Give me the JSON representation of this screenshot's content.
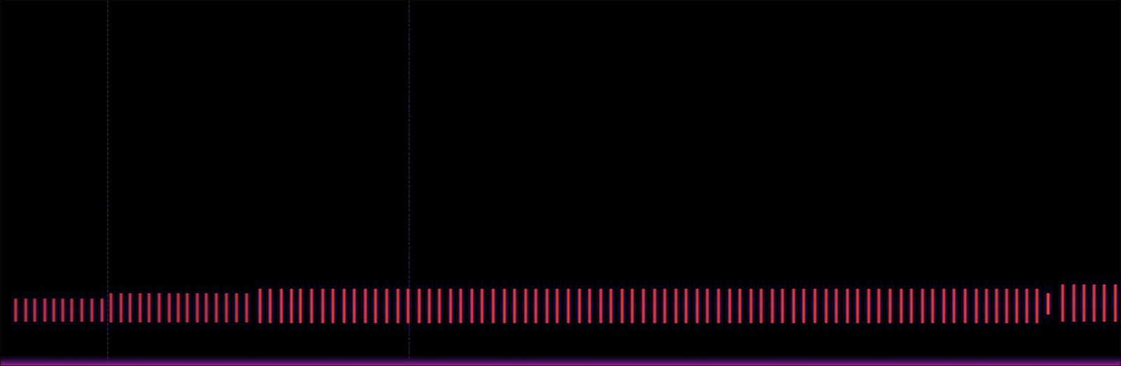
{
  "chart_data": {
    "type": "spectrogram",
    "tick_labels": false,
    "color": "#e0234e",
    "xlim": [
      0,
      100
    ],
    "ylim": [
      0,
      100
    ],
    "noise_floor": 3,
    "clicks": [
      9.6,
      36.5
    ],
    "pulses": {
      "x": [
        1.4,
        2.3,
        3.1,
        4.0,
        4.8,
        5.6,
        6.4,
        7.3,
        8.2,
        9.1,
        9.9,
        10.8,
        11.6,
        12.5,
        13.3,
        14.2,
        15.1,
        15.9,
        16.7,
        17.6,
        18.4,
        19.3,
        20.2,
        21.1,
        22.0,
        23.2,
        24.1,
        25.1,
        26.0,
        26.8,
        27.8,
        28.8,
        29.7,
        30.7,
        31.6,
        32.6,
        33.5,
        34.5,
        35.5,
        36.4,
        37.4,
        38.3,
        39.2,
        40.2,
        41.1,
        42.1,
        43.0,
        44.0,
        45.0,
        45.9,
        46.9,
        47.8,
        48.8,
        49.7,
        50.7,
        51.7,
        52.6,
        53.6,
        54.5,
        55.5,
        56.4,
        57.4,
        58.4,
        59.3,
        60.3,
        61.2,
        62.2,
        63.1,
        64.1,
        65.1,
        66.0,
        67.0,
        67.9,
        68.9,
        69.8,
        70.8,
        71.7,
        72.7,
        73.7,
        74.6,
        75.6,
        76.5,
        77.5,
        78.4,
        79.4,
        80.4,
        81.3,
        82.3,
        83.2,
        84.2,
        85.1,
        86.1,
        87.1,
        88.0,
        88.9,
        89.8,
        90.7,
        91.6,
        92.5,
        93.5,
        94.8,
        95.8,
        96.7,
        97.6,
        98.5,
        99.5
      ],
      "freq_low": [
        12.1,
        12.1,
        12.1,
        12.1,
        12.1,
        12.1,
        12.1,
        12.1,
        12.1,
        12.1,
        11.9,
        11.9,
        11.9,
        11.9,
        11.9,
        11.9,
        11.9,
        11.9,
        11.9,
        11.9,
        11.9,
        11.9,
        11.9,
        11.9,
        11.9,
        11.7,
        11.7,
        11.7,
        11.7,
        11.7,
        11.7,
        11.7,
        11.7,
        11.7,
        11.7,
        11.7,
        11.7,
        11.7,
        11.7,
        11.7,
        11.7,
        11.7,
        11.7,
        11.7,
        11.7,
        11.7,
        11.7,
        11.7,
        11.7,
        11.7,
        11.7,
        11.7,
        11.7,
        11.7,
        11.7,
        11.7,
        11.7,
        11.7,
        11.7,
        11.7,
        11.7,
        11.7,
        11.7,
        11.7,
        11.7,
        11.7,
        11.7,
        11.7,
        11.7,
        11.7,
        11.7,
        11.7,
        11.7,
        11.7,
        11.7,
        11.7,
        11.7,
        11.7,
        11.7,
        11.7,
        11.7,
        11.7,
        11.7,
        11.7,
        11.7,
        11.7,
        11.7,
        11.7,
        11.7,
        11.7,
        11.7,
        11.7,
        11.7,
        11.7,
        11.7,
        11.7,
        11.7,
        11.7,
        11.7,
        14.1,
        12.1,
        12.1,
        12.1,
        12.1,
        12.1,
        12.1
      ],
      "freq_high": [
        18.4,
        18.4,
        18.4,
        18.4,
        18.4,
        18.4,
        18.4,
        18.4,
        18.4,
        18.4,
        19.9,
        19.9,
        19.9,
        19.9,
        19.9,
        19.9,
        19.9,
        19.9,
        19.9,
        19.9,
        19.9,
        19.9,
        19.9,
        19.9,
        19.9,
        21.1,
        21.1,
        21.1,
        21.1,
        21.1,
        21.1,
        21.1,
        21.1,
        21.1,
        21.1,
        21.1,
        21.1,
        21.1,
        21.1,
        21.1,
        21.1,
        21.1,
        21.1,
        21.1,
        21.1,
        21.1,
        21.1,
        21.1,
        21.1,
        21.1,
        21.1,
        21.1,
        21.1,
        21.1,
        21.1,
        21.1,
        21.1,
        21.1,
        21.1,
        21.1,
        21.1,
        21.1,
        21.1,
        21.1,
        21.1,
        21.1,
        21.1,
        21.1,
        21.1,
        21.1,
        21.1,
        21.1,
        21.1,
        21.1,
        21.1,
        21.1,
        21.1,
        21.1,
        21.1,
        21.1,
        21.1,
        21.1,
        21.1,
        21.1,
        21.1,
        21.1,
        21.1,
        21.1,
        21.1,
        21.1,
        21.1,
        21.1,
        21.1,
        21.1,
        21.1,
        21.1,
        21.1,
        21.1,
        21.1,
        19.9,
        22.3,
        22.3,
        22.3,
        22.3,
        22.3,
        22.3
      ],
      "intensity": [
        0.75,
        0.75,
        0.75,
        0.75,
        0.75,
        0.75,
        0.75,
        0.75,
        0.75,
        0.75,
        0.75,
        0.75,
        0.75,
        0.75,
        0.75,
        0.75,
        0.75,
        0.75,
        0.75,
        0.75,
        0.75,
        0.75,
        0.75,
        0.75,
        0.75,
        0.85,
        0.85,
        0.85,
        0.85,
        0.85,
        0.85,
        0.85,
        0.85,
        0.85,
        0.85,
        0.85,
        0.85,
        0.85,
        0.85,
        0.85,
        0.85,
        0.85,
        0.85,
        0.85,
        0.85,
        0.85,
        0.85,
        0.85,
        0.85,
        0.85,
        0.85,
        0.85,
        0.85,
        0.85,
        0.85,
        0.85,
        0.85,
        0.85,
        0.85,
        0.85,
        0.85,
        0.85,
        0.85,
        0.85,
        0.85,
        0.85,
        0.85,
        0.85,
        0.85,
        0.85,
        0.85,
        0.85,
        0.85,
        0.85,
        0.85,
        0.85,
        0.85,
        0.85,
        0.85,
        0.85,
        0.85,
        0.85,
        0.85,
        0.85,
        0.85,
        0.85,
        0.85,
        0.85,
        0.85,
        0.85,
        0.85,
        0.85,
        0.85,
        0.85,
        0.85,
        0.85,
        0.85,
        0.85,
        0.85,
        1,
        0.85,
        0.85,
        0.85,
        0.85,
        0.85,
        0.85
      ]
    }
  }
}
